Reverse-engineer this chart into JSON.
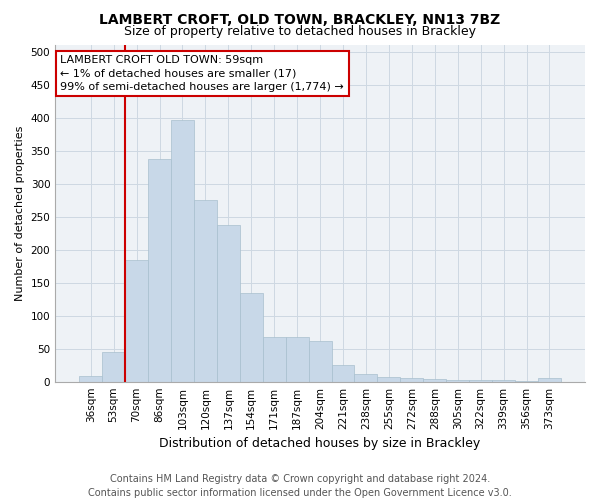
{
  "title1": "LAMBERT CROFT, OLD TOWN, BRACKLEY, NN13 7BZ",
  "title2": "Size of property relative to detached houses in Brackley",
  "xlabel": "Distribution of detached houses by size in Brackley",
  "ylabel": "Number of detached properties",
  "categories": [
    "36sqm",
    "53sqm",
    "70sqm",
    "86sqm",
    "103sqm",
    "120sqm",
    "137sqm",
    "154sqm",
    "171sqm",
    "187sqm",
    "204sqm",
    "221sqm",
    "238sqm",
    "255sqm",
    "272sqm",
    "288sqm",
    "305sqm",
    "322sqm",
    "339sqm",
    "356sqm",
    "373sqm"
  ],
  "values": [
    8,
    45,
    185,
    338,
    397,
    275,
    238,
    135,
    68,
    68,
    62,
    25,
    12,
    7,
    5,
    4,
    3,
    3,
    2,
    1,
    5
  ],
  "bar_color": "#c8d8e8",
  "bar_edge_color": "#a8bfce",
  "highlight_color": "#cc0000",
  "annotation_text": "LAMBERT CROFT OLD TOWN: 59sqm\n← 1% of detached houses are smaller (17)\n99% of semi-detached houses are larger (1,774) →",
  "annotation_box_color": "#ffffff",
  "annotation_edge_color": "#cc0000",
  "ylim": [
    0,
    510
  ],
  "yticks": [
    0,
    50,
    100,
    150,
    200,
    250,
    300,
    350,
    400,
    450,
    500
  ],
  "grid_color": "#cdd8e2",
  "background_color": "#eef2f6",
  "footer_text": "Contains HM Land Registry data © Crown copyright and database right 2024.\nContains public sector information licensed under the Open Government Licence v3.0.",
  "title1_fontsize": 10,
  "title2_fontsize": 9,
  "xlabel_fontsize": 9,
  "ylabel_fontsize": 8,
  "tick_fontsize": 7.5,
  "annotation_fontsize": 8,
  "footer_fontsize": 7
}
